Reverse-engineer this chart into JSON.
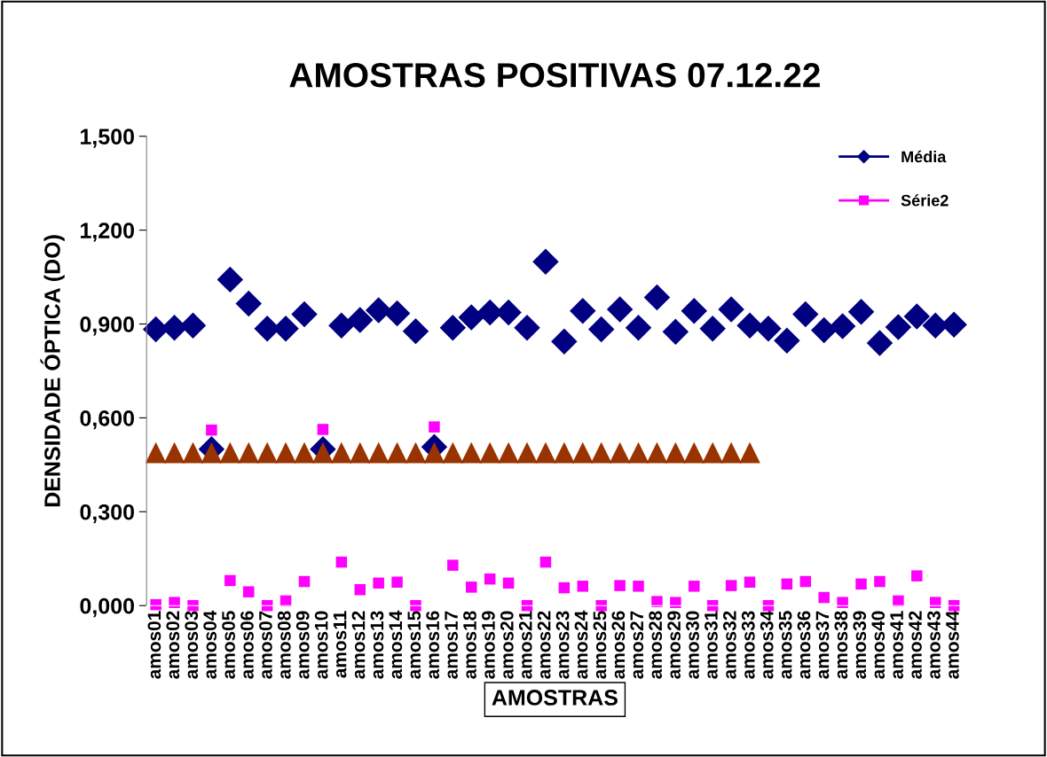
{
  "chart_data": {
    "type": "scatter",
    "title": "AMOSTRAS POSITIVAS 07.12.22",
    "xlabel": "AMOSTRAS",
    "ylabel": "DENSIDADE ÓPTICA (DO)",
    "categories": [
      "amos01",
      "amos02",
      "amos03",
      "amos04",
      "amos05",
      "amos06",
      "amos07",
      "amos08",
      "amos09",
      "amos10",
      "amos11",
      "amos12",
      "amos13",
      "amos14",
      "amos15",
      "amos16",
      "amos17",
      "amos18",
      "amos19",
      "amos20",
      "amos21",
      "amos22",
      "amos23",
      "amos24",
      "amos25",
      "amos26",
      "amos27",
      "amos28",
      "amos29",
      "amos30",
      "amos31",
      "amos32",
      "amos33",
      "amos34",
      "amos35",
      "amos36",
      "amos37",
      "amos38",
      "amos39",
      "amos40",
      "amos41",
      "amos42",
      "amos43",
      "amos44"
    ],
    "series": [
      {
        "name": "Média",
        "color": "#000080",
        "marker": "diamond",
        "values": [
          0.883,
          0.888,
          0.895,
          0.5,
          1.042,
          0.965,
          0.885,
          0.885,
          0.931,
          0.5,
          0.895,
          0.913,
          0.944,
          0.934,
          0.877,
          0.507,
          0.888,
          0.921,
          0.937,
          0.937,
          0.888,
          1.099,
          0.844,
          0.942,
          0.883,
          0.947,
          0.888,
          0.985,
          0.875,
          0.942,
          0.885,
          0.947,
          0.895,
          0.885,
          0.847,
          0.931,
          0.88,
          0.893,
          0.939,
          0.839,
          0.89,
          0.924,
          0.895,
          0.898
        ]
      },
      {
        "name": "Série2",
        "color": "#ff00ff",
        "marker": "square",
        "values": [
          0.003,
          0.01,
          0.0,
          0.561,
          0.08,
          0.044,
          0.0,
          0.015,
          0.077,
          0.563,
          0.139,
          0.051,
          0.072,
          0.075,
          0.0,
          0.571,
          0.129,
          0.059,
          0.085,
          0.072,
          0.0,
          0.139,
          0.057,
          0.062,
          0.0,
          0.064,
          0.062,
          0.013,
          0.01,
          0.062,
          0.0,
          0.064,
          0.075,
          0.0,
          0.069,
          0.077,
          0.026,
          0.01,
          0.069,
          0.077,
          0.015,
          0.095,
          0.01,
          0.0
        ]
      },
      {
        "color": "#993300",
        "marker": "triangle",
        "values": [
          0.489,
          0.489,
          0.489,
          0.489,
          0.489,
          0.489,
          0.489,
          0.489,
          0.489,
          0.489,
          0.489,
          0.489,
          0.489,
          0.489,
          0.489,
          0.489,
          0.489,
          0.489,
          0.489,
          0.489,
          0.489,
          0.489,
          0.489,
          0.489,
          0.489,
          0.489,
          0.489,
          0.489,
          0.489,
          0.489,
          0.489,
          0.489,
          0.489,
          null,
          null,
          null,
          null,
          null,
          null,
          null,
          null,
          null,
          null,
          null
        ]
      }
    ],
    "ylim": [
      0,
      1.5
    ],
    "yticks": [
      {
        "value": 0,
        "label": "0,000"
      },
      {
        "value": 0.3,
        "label": "0,300"
      },
      {
        "value": 0.6,
        "label": "0,600"
      },
      {
        "value": 0.9,
        "label": "0,900"
      },
      {
        "value": 1.2,
        "label": "1,200"
      },
      {
        "value": 1.5,
        "label": "1,500"
      }
    ],
    "grid": false,
    "legend": "top right"
  }
}
